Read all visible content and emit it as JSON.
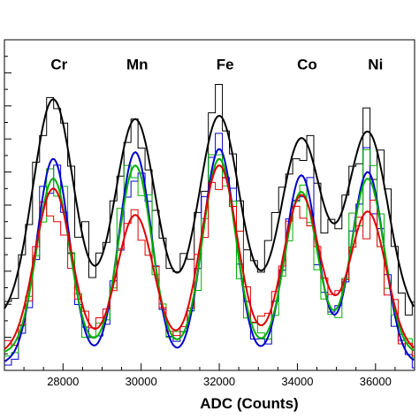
{
  "chart_data": {
    "type": "line",
    "title": "",
    "xlabel": "ADC (Counts)",
    "ylabel": "",
    "xlim": [
      26500,
      37000
    ],
    "ylim": [
      0,
      100
    ],
    "grid": false,
    "x_ticks": [
      28000,
      30000,
      32000,
      34000,
      36000
    ],
    "peak_labels": [
      {
        "text": "Cr",
        "x": 27900,
        "y": 91
      },
      {
        "text": "Mn",
        "x": 29900,
        "y": 91
      },
      {
        "text": "Fe",
        "x": 32150,
        "y": 91
      },
      {
        "text": "Co",
        "x": 34250,
        "y": 91
      },
      {
        "text": "Ni",
        "x": 36000,
        "y": 91
      }
    ],
    "peak_centers": [
      27750,
      29850,
      32000,
      34100,
      35800
    ],
    "series": [
      {
        "color": "#000000",
        "peaks": [
          82,
          76,
          77,
          70,
          72
        ],
        "sigma": 520,
        "baseline": 15,
        "step_hist": true
      },
      {
        "color": "#0000cc",
        "peaks": [
          64,
          66,
          67,
          59,
          60
        ],
        "sigma": 420,
        "baseline": 2,
        "step_hist": true
      },
      {
        "color": "#00b000",
        "peaks": [
          58,
          62,
          64,
          54,
          58
        ],
        "sigma": 420,
        "baseline": 5,
        "step_hist": true
      },
      {
        "color": "#dd0000",
        "peaks": [
          55,
          47,
          62,
          53,
          48
        ],
        "sigma": 470,
        "baseline": 5,
        "step_hist": true
      }
    ]
  }
}
